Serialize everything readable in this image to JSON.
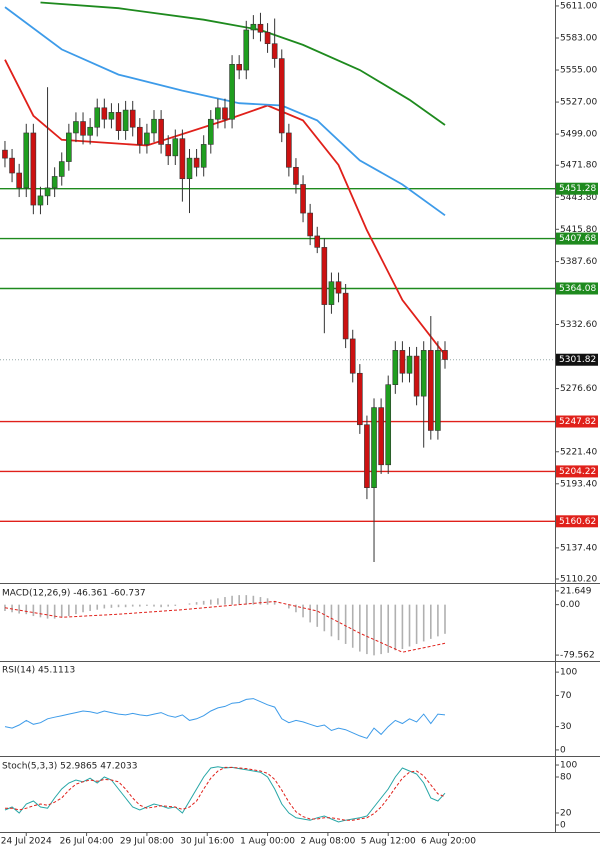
{
  "chart_data": [
    {
      "type": "candlestick",
      "xlim": [
        -0.7,
        77.5
      ],
      "xticks": [
        {
          "value": 3,
          "label": "24 Jul 2024"
        },
        {
          "value": 11.5,
          "label": "26 Jul 04:00"
        },
        {
          "value": 20,
          "label": "29 Jul 08:00"
        },
        {
          "value": 28.5,
          "label": "30 Jul 16:00"
        },
        {
          "value": 37,
          "label": "1 Aug 00:00"
        },
        {
          "value": 45.5,
          "label": "2 Aug 08:00"
        },
        {
          "value": 54,
          "label": "5 Aug 12:00"
        },
        {
          "value": 62.5,
          "label": "6 Aug 20:00"
        }
      ],
      "ylim": [
        5106.7,
        5616.2
      ],
      "yticks": [
        {
          "value": 5611,
          "label": "5611.00"
        },
        {
          "value": 5583,
          "label": "5583.00"
        },
        {
          "value": 5555,
          "label": "5555.00"
        },
        {
          "value": 5527,
          "label": "5527.00"
        },
        {
          "value": 5499,
          "label": "5499.00"
        },
        {
          "value": 5471.8,
          "label": "5471.80"
        },
        {
          "value": 5443.8,
          "label": "5443.80"
        },
        {
          "value": 5415.8,
          "label": "5415.80"
        },
        {
          "value": 5387.6,
          "label": "5387.60"
        },
        {
          "value": 5332.6,
          "label": "5332.60"
        },
        {
          "value": 5276.6,
          "label": "5276.60"
        },
        {
          "value": 5221.4,
          "label": "5221.40"
        },
        {
          "value": 5193.4,
          "label": "5193.40"
        },
        {
          "value": 5137.4,
          "label": "5137.40"
        },
        {
          "value": 5110.2,
          "label": "5110.20"
        }
      ],
      "up_color": "#1f9e1f",
      "down_color": "#cc1111",
      "open": [
        5485,
        5478,
        5465,
        5452,
        5500,
        5437,
        5445,
        5452,
        5462,
        5475,
        5500,
        5510,
        5498,
        5505,
        5522,
        5512,
        5518,
        5502,
        5520,
        5505,
        5490,
        5500,
        5512,
        5490,
        5480,
        5495,
        5460,
        5478,
        5470,
        5490,
        5512,
        5522,
        5512,
        5560,
        5555,
        5590,
        5595,
        5588,
        5578,
        5565,
        5500,
        5470,
        5455,
        5430,
        5410,
        5400,
        5350,
        5370,
        5360,
        5320,
        5290,
        5245,
        5190,
        5260,
        5210,
        5280,
        5310,
        5290,
        5305,
        5270,
        5310,
        5240,
        5310
      ],
      "high": [
        5493,
        5486,
        5473,
        5508,
        5508,
        5453,
        5540,
        5470,
        5483,
        5508,
        5518,
        5518,
        5513,
        5530,
        5530,
        5526,
        5526,
        5528,
        5528,
        5513,
        5508,
        5520,
        5520,
        5498,
        5503,
        5503,
        5486,
        5486,
        5498,
        5520,
        5530,
        5530,
        5568,
        5568,
        5598,
        5603,
        5605,
        5596,
        5600,
        5573,
        5508,
        5478,
        5463,
        5438,
        5418,
        5408,
        5378,
        5378,
        5368,
        5328,
        5298,
        5253,
        5268,
        5268,
        5288,
        5318,
        5318,
        5313,
        5313,
        5318,
        5340,
        5318,
        5318
      ],
      "low": [
        5470,
        5457,
        5444,
        5444,
        5429,
        5429,
        5437,
        5444,
        5454,
        5467,
        5492,
        5490,
        5490,
        5497,
        5504,
        5504,
        5494,
        5494,
        5497,
        5482,
        5482,
        5492,
        5482,
        5472,
        5472,
        5440,
        5430,
        5462,
        5462,
        5482,
        5504,
        5504,
        5504,
        5547,
        5547,
        5582,
        5580,
        5570,
        5557,
        5492,
        5462,
        5447,
        5422,
        5402,
        5395,
        5325,
        5342,
        5352,
        5312,
        5282,
        5237,
        5180,
        5125,
        5202,
        5202,
        5272,
        5282,
        5282,
        5262,
        5225,
        5232,
        5232,
        5294
      ],
      "close": [
        5478,
        5465,
        5452,
        5500,
        5437,
        5445,
        5452,
        5462,
        5475,
        5500,
        5510,
        5498,
        5505,
        5522,
        5512,
        5518,
        5502,
        5520,
        5505,
        5490,
        5500,
        5512,
        5490,
        5480,
        5495,
        5460,
        5478,
        5470,
        5490,
        5512,
        5522,
        5512,
        5560,
        5555,
        5590,
        5595,
        5588,
        5578,
        5565,
        5500,
        5470,
        5455,
        5430,
        5410,
        5400,
        5350,
        5370,
        5360,
        5320,
        5290,
        5245,
        5190,
        5260,
        5210,
        5280,
        5310,
        5290,
        5305,
        5270,
        5310,
        5240,
        5310,
        5302
      ],
      "lines": [
        {
          "color": "#e0201a",
          "x": [
            0,
            4,
            8,
            20,
            31,
            37,
            42,
            47,
            51,
            56,
            62
          ],
          "values": [
            5564,
            5515,
            5494,
            5489,
            5511,
            5524,
            5511,
            5472,
            5415,
            5354,
            5306
          ]
        },
        {
          "color": "#3d9be9",
          "x": [
            0,
            8,
            16,
            25,
            33,
            39,
            44,
            50,
            56,
            62
          ],
          "values": [
            5610,
            5573,
            5551,
            5537,
            5526,
            5524,
            5511,
            5476,
            5455,
            5428
          ]
        },
        {
          "color": "#1e8a1e",
          "x": [
            5,
            16,
            28,
            36,
            42,
            50,
            57,
            62
          ],
          "values": [
            5614,
            5609,
            5599,
            5590,
            5577,
            5555,
            5529,
            5507
          ]
        }
      ],
      "levels": [
        {
          "value": 5451.28,
          "color": "#1e8a1e"
        },
        {
          "value": 5407.68,
          "color": "#1e8a1e"
        },
        {
          "value": 5364.08,
          "color": "#1e8a1e"
        },
        {
          "value": 5301.82,
          "color": "#111111",
          "dashed": true
        },
        {
          "value": 5247.82,
          "color": "#e0201a"
        },
        {
          "value": 5204.22,
          "color": "#e0201a"
        },
        {
          "value": 5160.62,
          "color": "#e0201a"
        }
      ]
    },
    {
      "type": "macd",
      "title": "MACD(12,26,9) -46.361 -60.737",
      "ylim": [
        -88.9,
        31
      ],
      "yticks": [
        21.649,
        {
          "value": 0,
          "label": "0.00"
        },
        -79.562
      ],
      "color": "#b0b0b0",
      "values": [
        -10,
        -12,
        -14,
        -15,
        -18,
        -20,
        -22,
        -22,
        -20,
        -18,
        -15,
        -12,
        -10,
        -8,
        -6,
        -5,
        -4,
        -4,
        -3,
        -3,
        -2,
        -3,
        -4,
        -3,
        -2,
        0,
        2,
        4,
        6,
        8,
        10,
        12,
        14,
        15,
        15,
        14,
        12,
        10,
        6,
        0,
        -6,
        -12,
        -20,
        -28,
        -35,
        -42,
        -50,
        -56,
        -62,
        -68,
        -74,
        -78,
        -80,
        -78,
        -76,
        -72,
        -70,
        -66,
        -62,
        -58,
        -54,
        -50,
        -46
      ],
      "signal": {
        "color": "#e0201a",
        "x": [
          0,
          8,
          16,
          25,
          33,
          38,
          44,
          50,
          56,
          62
        ],
        "values": [
          -5,
          -20,
          -15,
          -8,
          0,
          5,
          -10,
          -45,
          -75,
          -61
        ]
      }
    },
    {
      "type": "line",
      "title": "RSI(14) 45.1113",
      "ylim": [
        -7.8,
        113
      ],
      "yticks": [
        100,
        70,
        30,
        0
      ],
      "series": [
        {
          "color": "#3d9be9",
          "values": [
            30,
            28,
            32,
            38,
            33,
            35,
            40,
            42,
            44,
            46,
            48,
            50,
            49,
            47,
            50,
            48,
            46,
            45,
            47,
            45,
            44,
            46,
            48,
            44,
            42,
            45,
            38,
            40,
            44,
            50,
            54,
            56,
            60,
            61,
            65,
            66,
            62,
            58,
            55,
            40,
            35,
            38,
            36,
            33,
            30,
            32,
            25,
            28,
            26,
            22,
            18,
            15,
            28,
            20,
            30,
            38,
            34,
            40,
            36,
            46,
            34,
            46,
            45
          ]
        }
      ]
    },
    {
      "type": "line",
      "title": "Stoch(5,3,3) 52.9865 47.2033",
      "ylim": [
        -11.7,
        111.7
      ],
      "yticks": [
        100,
        80,
        20,
        0
      ],
      "series": [
        {
          "color": "#26a6a6",
          "values": [
            25,
            30,
            20,
            35,
            40,
            30,
            28,
            45,
            60,
            70,
            75,
            72,
            78,
            70,
            80,
            75,
            60,
            45,
            30,
            25,
            30,
            35,
            32,
            28,
            30,
            20,
            40,
            60,
            80,
            95,
            97,
            95,
            96,
            94,
            92,
            90,
            88,
            80,
            60,
            35,
            20,
            12,
            10,
            8,
            12,
            15,
            10,
            5,
            8,
            10,
            12,
            15,
            30,
            45,
            60,
            80,
            95,
            90,
            85,
            70,
            45,
            40,
            53
          ]
        },
        {
          "color": "#e0201a",
          "dashed": true,
          "values": [
            28,
            28,
            25,
            28,
            32,
            35,
            33,
            38,
            45,
            58,
            68,
            72,
            75,
            73,
            76,
            75,
            72,
            60,
            45,
            33,
            28,
            30,
            32,
            31,
            30,
            26,
            30,
            40,
            60,
            78,
            90,
            96,
            96,
            95,
            94,
            92,
            90,
            86,
            76,
            58,
            38,
            22,
            14,
            10,
            10,
            12,
            12,
            10,
            8,
            8,
            10,
            12,
            19,
            30,
            45,
            62,
            78,
            88,
            90,
            82,
            67,
            52,
            47
          ]
        }
      ]
    }
  ]
}
